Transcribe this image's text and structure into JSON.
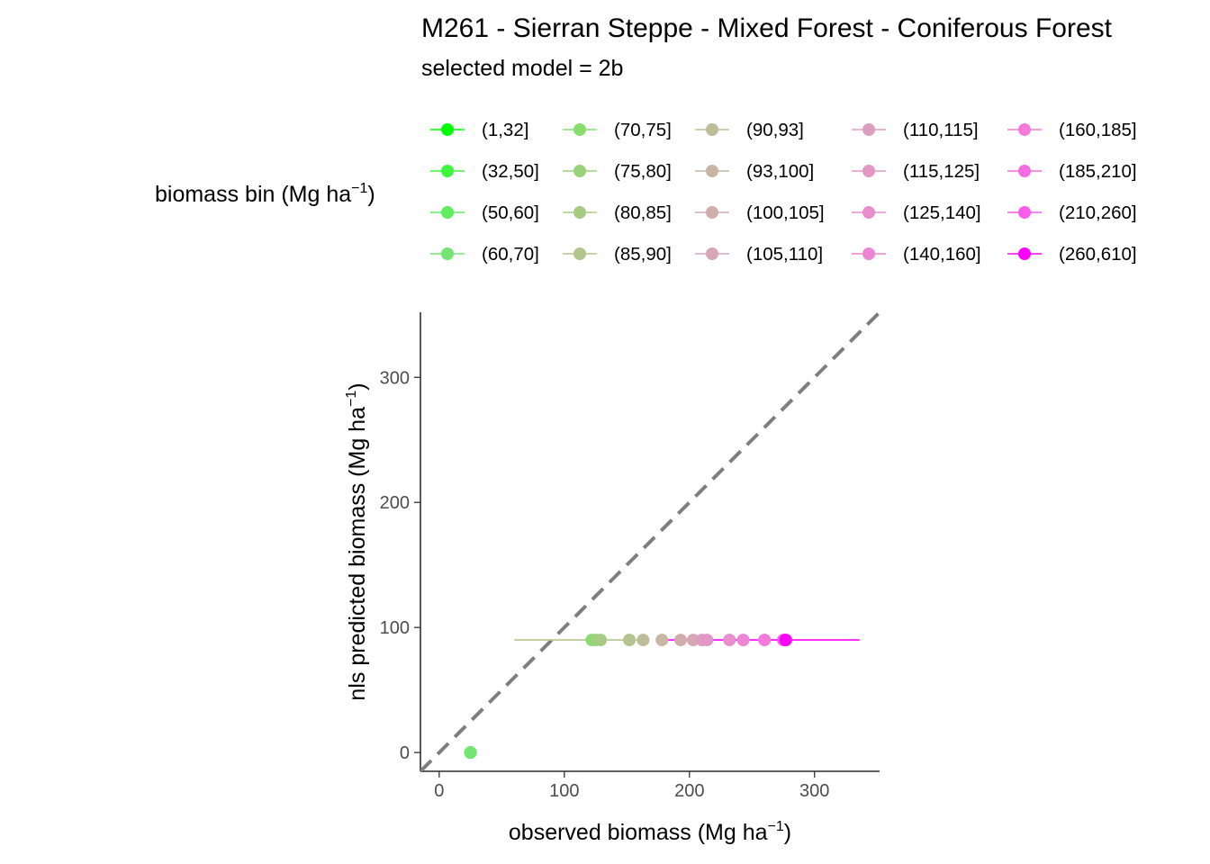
{
  "chart_data": {
    "type": "scatter",
    "title": "M261 - Sierran Steppe - Mixed Forest - Coniferous Forest",
    "subtitle": "selected model = 2b",
    "xlabel": {
      "main": "observed biomass (Mg ha",
      "sup": "−1",
      "close": ")"
    },
    "ylabel": {
      "main": "nls predicted biomass (Mg ha",
      "sup": "−1",
      "close": ")"
    },
    "xlim": [
      -15,
      352
    ],
    "ylim": [
      -15,
      352
    ],
    "xticks": [
      0,
      100,
      200,
      300
    ],
    "yticks": [
      0,
      100,
      200,
      300
    ],
    "grid": false,
    "reference_line": {
      "type": "identity",
      "style": "dashed",
      "color": "#7f7f7f"
    },
    "legend": {
      "title": {
        "main": "biomass bin (Mg ha",
        "sup": "−1",
        "close": ")"
      },
      "placement": "top",
      "columns": 5
    },
    "series": [
      {
        "name": "(1,32]",
        "color": "#00FF00",
        "x": 25,
        "y": 0,
        "xmin": 21,
        "xmax": 29
      },
      {
        "name": "(32,50]",
        "color": "#3DF63D",
        "x": 25,
        "y": 0,
        "xmin": 23,
        "xmax": 28
      },
      {
        "name": "(50,60]",
        "color": "#5CEE5C",
        "x": 25,
        "y": 0,
        "xmin": 23,
        "xmax": 28
      },
      {
        "name": "(60,70]",
        "color": "#74E574",
        "x": 25,
        "y": 0,
        "xmin": 23,
        "xmax": 28
      },
      {
        "name": "(70,75]",
        "color": "#89DD6F",
        "x": 122,
        "y": 90,
        "xmin": 119,
        "xmax": 125
      },
      {
        "name": "(75,80]",
        "color": "#99D379",
        "x": 125,
        "y": 90,
        "xmin": 122,
        "xmax": 128
      },
      {
        "name": "(80,85]",
        "color": "#A8CB83",
        "x": 129,
        "y": 90,
        "xmin": 126,
        "xmax": 132
      },
      {
        "name": "(85,90]",
        "color": "#B4C48E",
        "x": 152,
        "y": 90,
        "xmin": 60,
        "xmax": 160
      },
      {
        "name": "(90,93]",
        "color": "#BFBD99",
        "x": 163,
        "y": 90,
        "xmin": 160,
        "xmax": 166
      },
      {
        "name": "(93,100]",
        "color": "#C8B6A4",
        "x": 178,
        "y": 90,
        "xmin": 175,
        "xmax": 181
      },
      {
        "name": "(100,105]",
        "color": "#D0AEAD",
        "x": 193,
        "y": 90,
        "xmin": 190,
        "xmax": 196
      },
      {
        "name": "(105,110]",
        "color": "#D7A7B6",
        "x": 203,
        "y": 90,
        "xmin": 200,
        "xmax": 206
      },
      {
        "name": "(110,115]",
        "color": "#DD9FBE",
        "x": 210,
        "y": 90,
        "xmin": 207,
        "xmax": 213
      },
      {
        "name": "(115,125]",
        "color": "#E397C5",
        "x": 214,
        "y": 90,
        "xmin": 211,
        "xmax": 217
      },
      {
        "name": "(125,140]",
        "color": "#E98ECD",
        "x": 232,
        "y": 90,
        "xmin": 229,
        "xmax": 235
      },
      {
        "name": "(140,160]",
        "color": "#EE84D4",
        "x": 243,
        "y": 90,
        "xmin": 240,
        "xmax": 246
      },
      {
        "name": "(160,185]",
        "color": "#F379DB",
        "x": 260,
        "y": 90,
        "xmin": 257,
        "xmax": 263
      },
      {
        "name": "(185,210]",
        "color": "#F76CE2",
        "x": 275,
        "y": 90,
        "xmin": 272,
        "xmax": 278
      },
      {
        "name": "(210,260]",
        "color": "#FB5BEB",
        "x": 276,
        "y": 90,
        "xmin": 273,
        "xmax": 279
      },
      {
        "name": "(260,610]",
        "color": "#FF00FF",
        "x": 277,
        "y": 90,
        "xmin": 180,
        "xmax": 336
      }
    ]
  }
}
